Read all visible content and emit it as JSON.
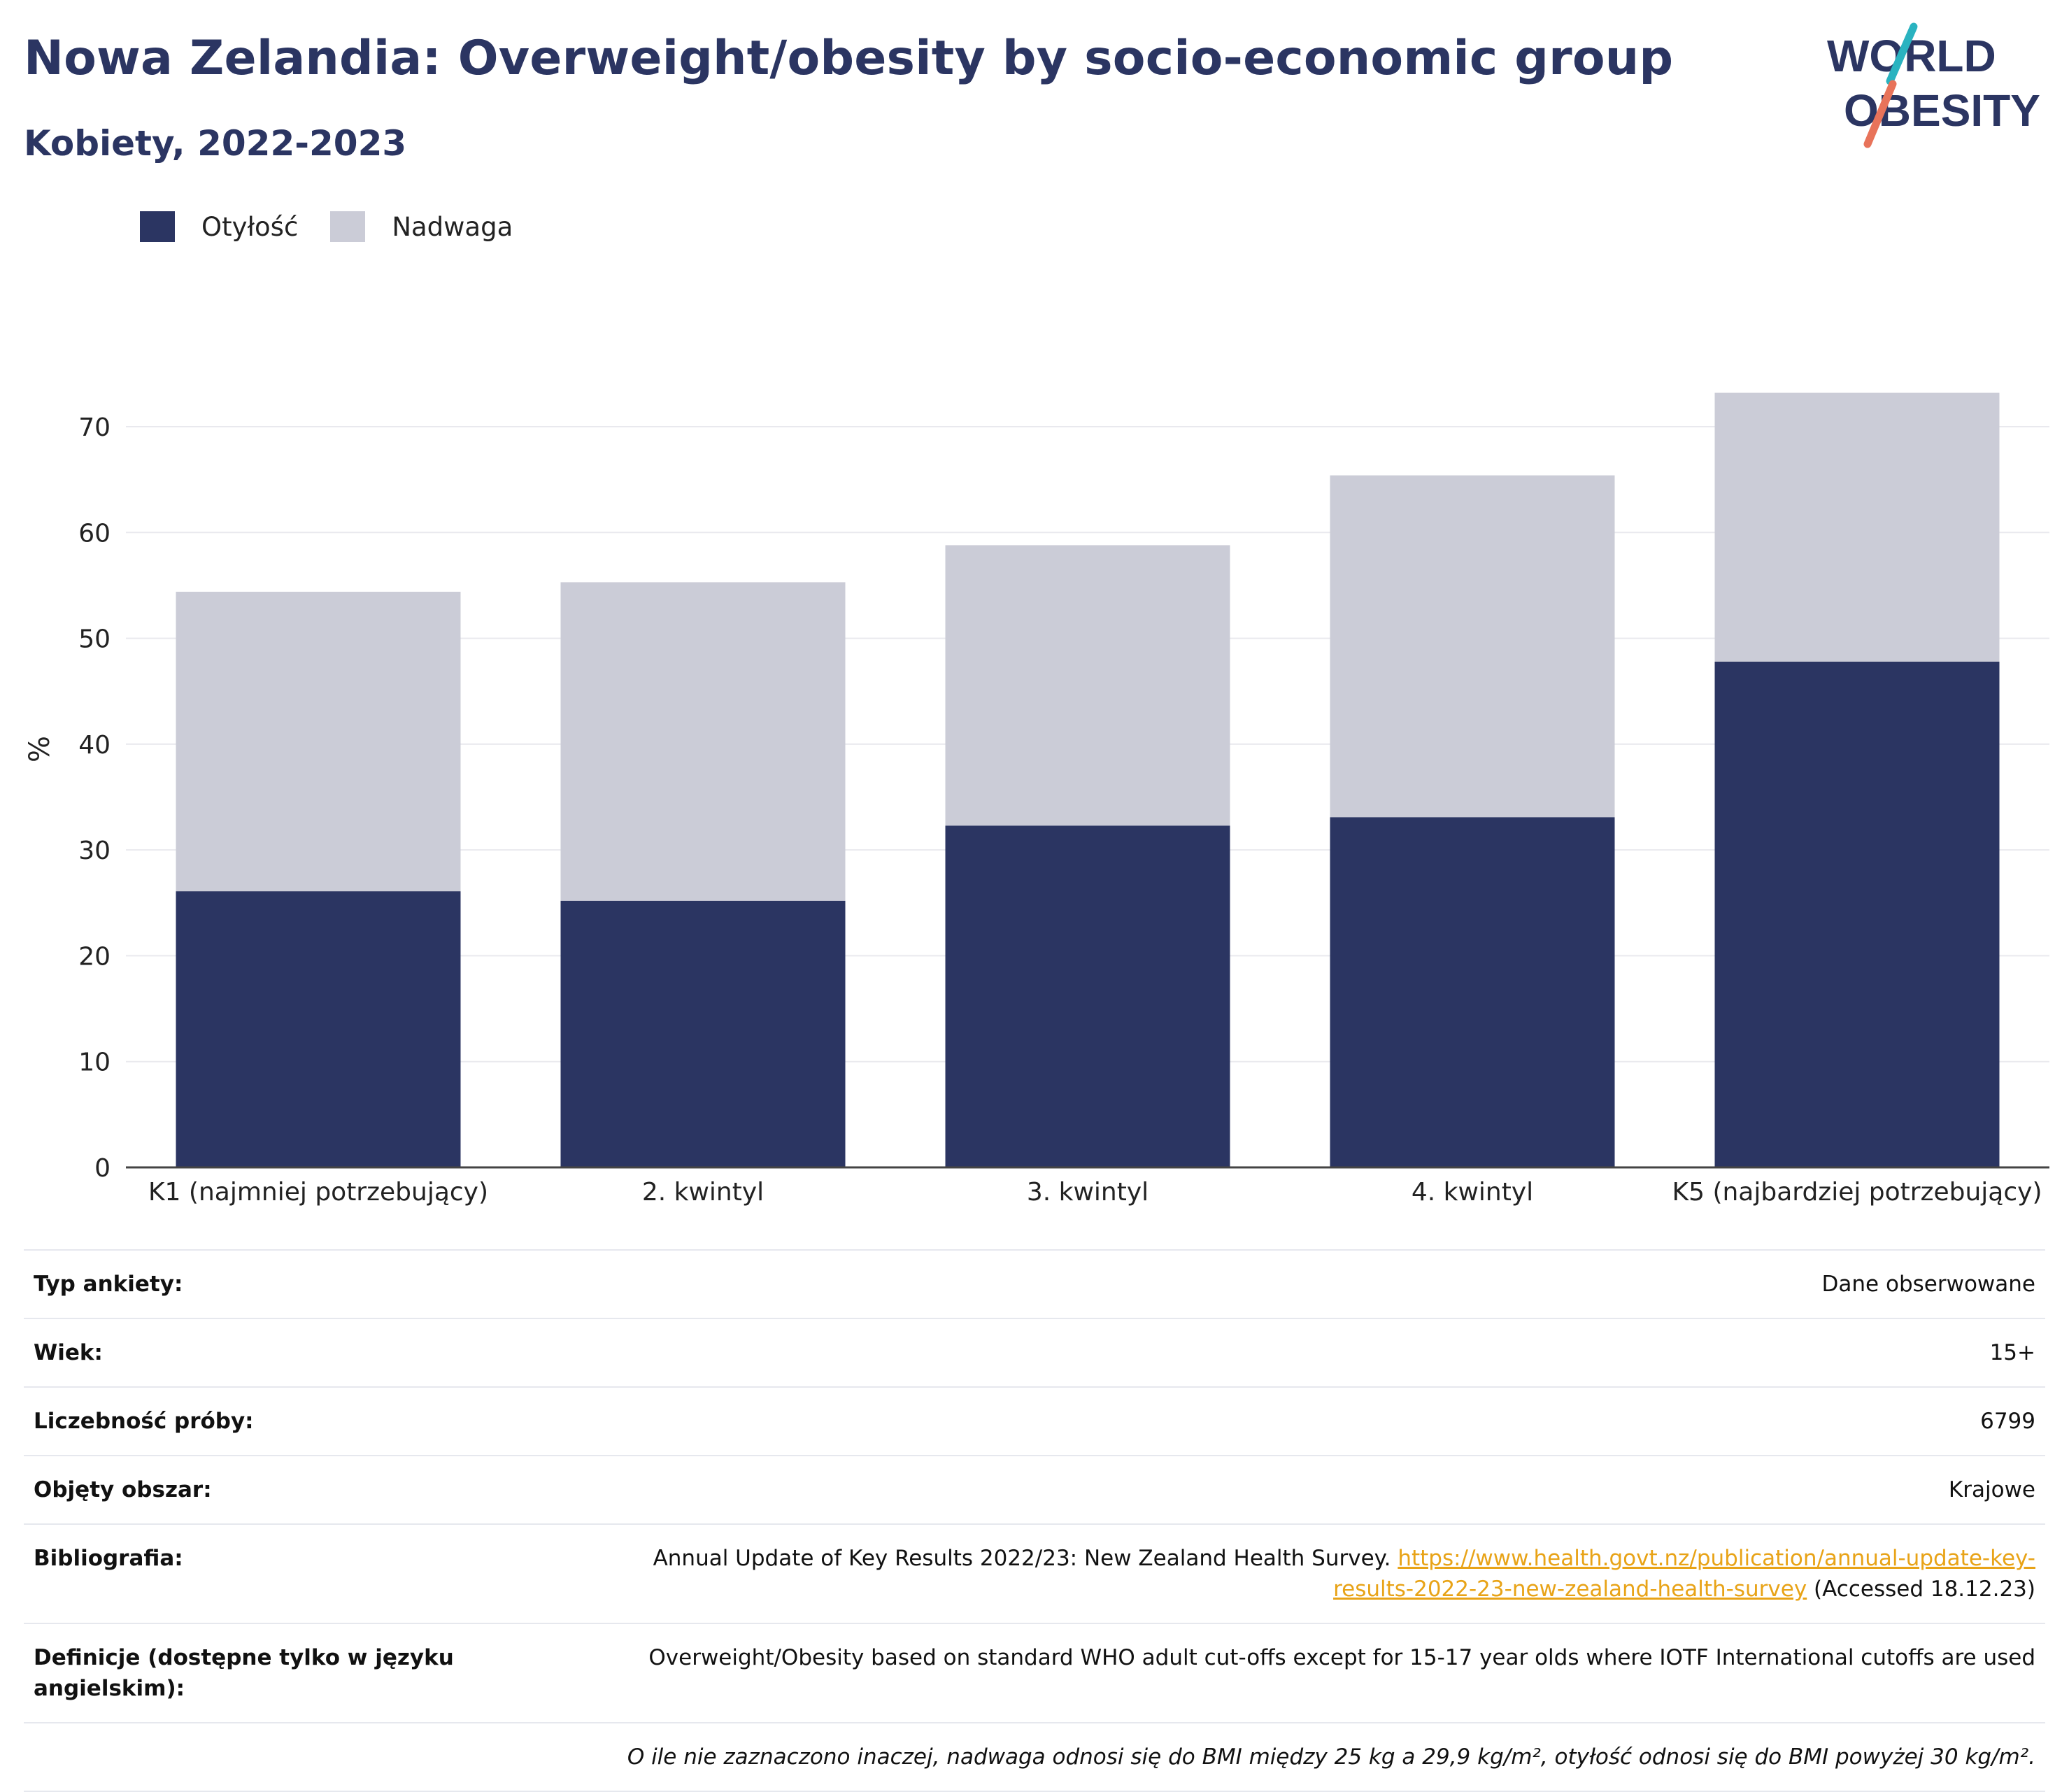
{
  "header": {
    "title": "Nowa Zelandia: Overweight/obesity by socio-economic group",
    "subtitle": "Kobiety, 2022-2023"
  },
  "logo": {
    "line1": "WORLD",
    "line2": "OBESITY"
  },
  "colors": {
    "obesity": "#2b3562",
    "overweight": "#cbccd7",
    "title": "#2b3562",
    "link": "#e8a317",
    "logo_teal": "#2ab3c0",
    "logo_coral": "#e8735a"
  },
  "chart_data": {
    "type": "bar",
    "stacked": true,
    "categories": [
      "K1 (najmniej potrzebujący)",
      "2. kwintyl",
      "3. kwintyl",
      "4. kwintyl",
      "K5 (najbardziej potrzebujący)"
    ],
    "series": [
      {
        "name": "Otyłość",
        "values": [
          26.1,
          25.2,
          32.3,
          33.1,
          47.8
        ]
      },
      {
        "name": "Nadwaga",
        "values": [
          28.3,
          30.1,
          26.5,
          32.3,
          25.4
        ]
      }
    ],
    "totals": [
      54.4,
      55.3,
      58.8,
      65.4,
      73.2
    ],
    "ylabel": "%",
    "ylim": [
      0,
      75
    ],
    "yticks": [
      0,
      10,
      20,
      30,
      40,
      50,
      60,
      70
    ],
    "grid": true,
    "legend": "top-left"
  },
  "info": {
    "rows": [
      {
        "label": "Typ ankiety:",
        "value": "Dane obserwowane"
      },
      {
        "label": "Wiek:",
        "value": "15+"
      },
      {
        "label": "Liczebność próby:",
        "value": "6799"
      },
      {
        "label": "Objęty obszar:",
        "value": "Krajowe"
      }
    ],
    "bibliography": {
      "label": "Bibliografia:",
      "text": "Annual Update of Key Results 2022/23: New Zealand Health Survey.",
      "link_line1": "https://www.health.govt.nz/publication/annual-update-key-",
      "link_line2": "results-2022-23-new-zealand-health-survey",
      "accessed": "(Accessed 18.12.23)"
    },
    "definitions": {
      "label": "Definicje (dostępne tylko w języku angielskim):",
      "value": "Overweight/Obesity based on standard WHO adult cut-offs except for 15-17 year olds where IOTF International cutoffs are used"
    },
    "note": "O ile nie zaznaczono inaczej, nadwaga odnosi się do BMI między 25 kg a 29,9 kg/m², otyłość odnosi się do BMI powyżej 30 kg/m²."
  }
}
